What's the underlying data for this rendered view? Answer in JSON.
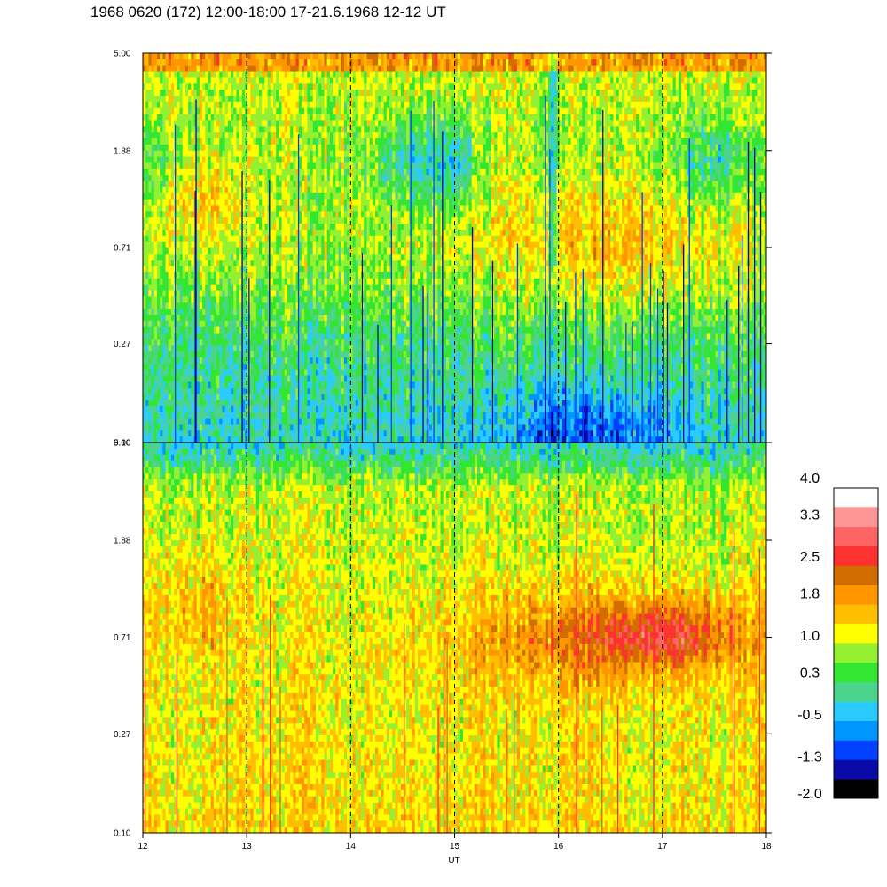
{
  "title": "1968 0620 (172) 12:00-18:00 17-21.6.1968  12-12 UT",
  "palette": [
    "#000000",
    "#0a0aa8",
    "#0042ff",
    "#0096ff",
    "#2ccbff",
    "#4cd38e",
    "#32e632",
    "#96f032",
    "#ffff00",
    "#ffbe00",
    "#ff9600",
    "#d26e00",
    "#ff3232",
    "#ff6464",
    "#ff9696",
    "#ffffff"
  ],
  "chart_data": [
    {
      "type": "heatmap",
      "panel": "top",
      "x_range": [
        12,
        18
      ],
      "y_ticks": [
        "5.00",
        "1.88",
        "0.71",
        "0.27",
        "0.10"
      ],
      "y_range": [
        0.1,
        5.0
      ],
      "y_scale": "log",
      "x_markers": [
        13,
        14,
        15,
        16,
        17
      ]
    },
    {
      "type": "heatmap",
      "panel": "bottom",
      "x_range": [
        12,
        18
      ],
      "xlabel": "UT",
      "x_ticks": [
        "12",
        "13",
        "14",
        "15",
        "16",
        "17",
        "18"
      ],
      "y_ticks": [
        "5.00",
        "1.88",
        "0.71",
        "0.27",
        "0.10"
      ],
      "y_range": [
        0.1,
        5.0
      ],
      "y_scale": "log",
      "x_markers": [
        13,
        14,
        15,
        16,
        17
      ]
    }
  ],
  "colorbar": {
    "labels": [
      "4.0",
      "3.3",
      "2.5",
      "1.8",
      "1.0",
      "0.3",
      "-0.5",
      "-1.3",
      "-2.0"
    ],
    "range": [
      -2.0,
      4.0
    ]
  }
}
